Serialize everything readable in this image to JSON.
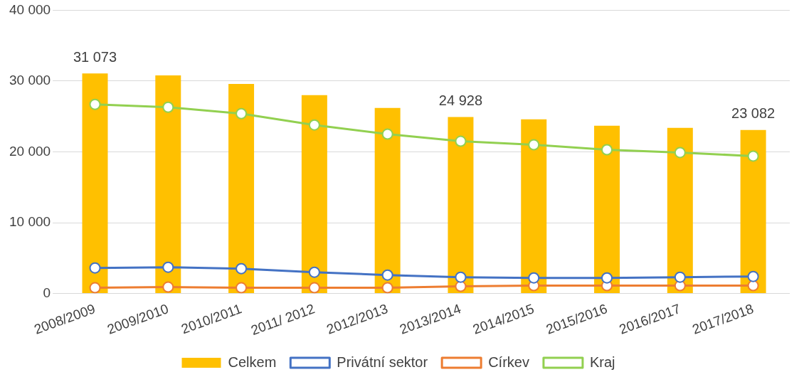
{
  "chart_data": {
    "type": "bar",
    "categories": [
      "2008/2009",
      "2009/2010",
      "2010/2011",
      "2011/ 2012",
      "2012/2013",
      "2013/2014",
      "2014/2015",
      "2015/2016",
      "2016/2017",
      "2017/2018"
    ],
    "series": [
      {
        "name": "Celkem",
        "color": "#ffc000",
        "values": [
          31073,
          30800,
          29600,
          28000,
          26200,
          24928,
          24600,
          23700,
          23400,
          23082
        ],
        "value_labels": [
          "31 073",
          null,
          null,
          null,
          null,
          "24 928",
          null,
          null,
          null,
          "23 082"
        ]
      },
      {
        "name": "Privátní sektor",
        "type": "line",
        "color": "#4472c4",
        "values": [
          3600,
          3700,
          3500,
          3000,
          2600,
          2300,
          2200,
          2200,
          2300,
          2400
        ]
      },
      {
        "name": "Církev",
        "type": "line",
        "color": "#ed7d31",
        "values": [
          800,
          900,
          800,
          800,
          800,
          1000,
          1100,
          1100,
          1100,
          1100
        ]
      },
      {
        "name": "Kraj",
        "type": "line",
        "color": "#92d050",
        "values": [
          26700,
          26300,
          25400,
          23800,
          22500,
          21500,
          21000,
          20300,
          19900,
          19400
        ]
      }
    ],
    "ylim": [
      0,
      40000
    ],
    "yticks": [
      {
        "value": 0,
        "label": "0"
      },
      {
        "value": 10000,
        "label": "10 000"
      },
      {
        "value": 20000,
        "label": "20 000"
      },
      {
        "value": 30000,
        "label": "30 000"
      },
      {
        "value": 40000,
        "label": "40 000"
      }
    ],
    "grid": "y",
    "legend": "bottom",
    "marker": "circle"
  }
}
